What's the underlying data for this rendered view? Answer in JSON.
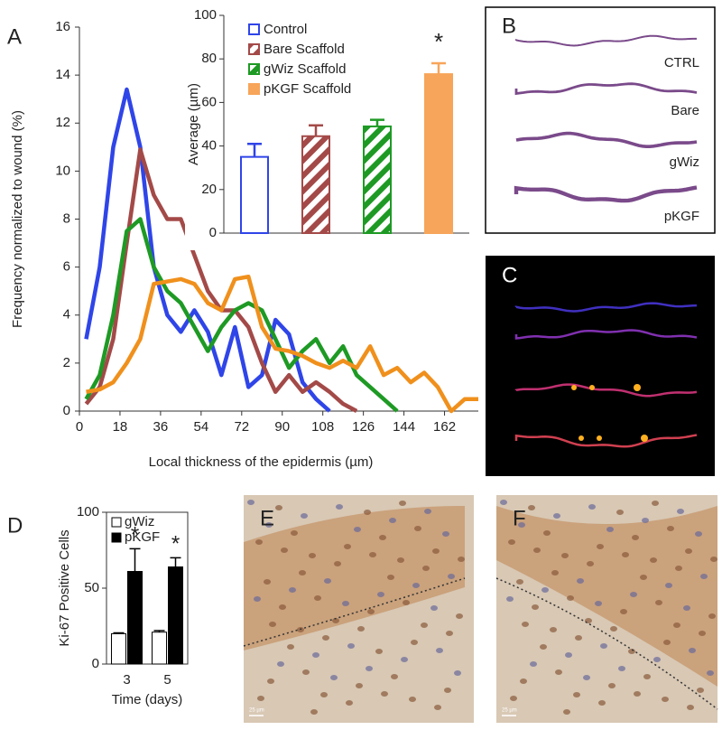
{
  "chart_data": [
    {
      "type": "line",
      "panel": "A",
      "xlabel": "Local thickness of the epidermis (µm)",
      "ylabel": "Frequency normalized to wound (%)",
      "x": [
        3,
        9,
        15,
        21,
        27,
        33,
        39,
        45,
        51,
        57,
        63,
        69,
        75,
        81,
        87,
        93,
        99,
        105,
        111,
        117,
        123,
        129,
        135,
        141,
        147,
        153,
        159,
        165,
        171,
        177
      ],
      "series": [
        {
          "color": "#2f45e8",
          "values": [
            3,
            6,
            11,
            13.4,
            11,
            6,
            4,
            3.3,
            4.2,
            3.3,
            1.5,
            3.5,
            1,
            1.5,
            3.8,
            3.2,
            1.2,
            0.5,
            0,
            null,
            null,
            null,
            null,
            null,
            null,
            null,
            null,
            null,
            null,
            null
          ]
        },
        {
          "color": "#a34a48",
          "values": [
            0.3,
            1,
            3,
            7,
            10.9,
            9,
            8,
            8,
            6.5,
            5,
            4.2,
            4.2,
            3.5,
            2,
            0.8,
            1.5,
            0.8,
            1.2,
            0.8,
            0.3,
            0,
            null,
            null,
            null,
            null,
            null,
            null,
            null,
            null,
            null
          ]
        },
        {
          "color": "#1e9a24",
          "values": [
            0.5,
            1.5,
            4,
            7.5,
            8,
            6,
            5,
            4.5,
            3.5,
            2.5,
            3.5,
            4.2,
            4.5,
            4.2,
            3,
            1.8,
            2.5,
            3,
            2,
            2.7,
            1.5,
            1,
            0.5,
            0,
            null,
            null,
            null,
            null,
            null,
            null
          ]
        },
        {
          "color": "#f0901c",
          "values": [
            0.8,
            0.9,
            1.2,
            2,
            3,
            5.3,
            5.4,
            5.5,
            5.3,
            4.5,
            4.2,
            5.5,
            5.6,
            3.5,
            2.6,
            2.5,
            2.3,
            2,
            1.8,
            2.1,
            1.8,
            2.7,
            1.5,
            1.8,
            1.2,
            1.6,
            1,
            0,
            0.5,
            0.5
          ]
        }
      ],
      "xlim": [
        0,
        177
      ],
      "xticks": [
        0,
        18,
        36,
        54,
        72,
        90,
        108,
        126,
        144,
        162
      ],
      "ylim": [
        0,
        16
      ],
      "yticks": [
        0,
        2,
        4,
        6,
        8,
        10,
        12,
        14,
        16
      ]
    },
    {
      "type": "bar",
      "ylabel": "Average (µm)",
      "categories": [
        "Control",
        "Bare Scaffold",
        "gWiz Scaffold",
        "pKGF Scaffold"
      ],
      "values": [
        35,
        44.5,
        49,
        73
      ],
      "errors": [
        6,
        5,
        3,
        5
      ],
      "colors": [
        "#2f45e8",
        "#a34a48",
        "#1e9a24",
        "#f7a55a"
      ],
      "fills": [
        "outline",
        "hatch",
        "hatch",
        "solid"
      ],
      "ylim": [
        0,
        100
      ],
      "yticks": [
        0,
        20,
        40,
        60,
        80,
        100
      ],
      "annotations": [
        {
          "text": "*",
          "category": "pKGF Scaffold"
        }
      ]
    },
    {
      "type": "grouped-bar",
      "panel": "D",
      "ylabel": "Ki-67 Positive Cells",
      "xlabel": "Time (days)",
      "categories": [
        "3",
        "5"
      ],
      "series": [
        {
          "name": "gWiz",
          "color": "#ffffff",
          "values": [
            20,
            21
          ],
          "errors": [
            0.5,
            1
          ]
        },
        {
          "name": "pKGF",
          "color": "#000000",
          "values": [
            61,
            64
          ],
          "errors": [
            15,
            6
          ]
        }
      ],
      "ylim": [
        0,
        100
      ],
      "yticks": [
        0,
        50,
        100
      ],
      "annotations": [
        {
          "text": "*",
          "category": "3"
        },
        {
          "text": "*",
          "category": "5"
        }
      ]
    }
  ],
  "panels": [
    {
      "label": "B",
      "rows": [
        "CTRL",
        "Bare",
        "gWiz",
        "pKGF"
      ]
    },
    {
      "label": "C"
    },
    {
      "label": "E",
      "scale_bar": "25 µm"
    },
    {
      "label": "F",
      "scale_bar": "25 µm"
    }
  ]
}
